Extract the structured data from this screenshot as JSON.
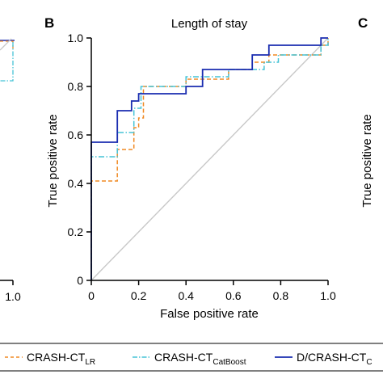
{
  "panels": {
    "left": {
      "letter": "",
      "x_ticks": [
        "1.0"
      ]
    },
    "main": {
      "letter": "B"
    },
    "right": {
      "letter": "C",
      "ylabel": "True positive rate"
    }
  },
  "legend": {
    "items": [
      {
        "base": "CRASH-CT",
        "sub": "LR",
        "color": "#f08a24",
        "dash": "dashed"
      },
      {
        "base": "CRASH-CT",
        "sub": "CatBoost",
        "color": "#45c3d6",
        "dash": "dashdot"
      },
      {
        "base": "D/CRASH-CT",
        "sub": "C",
        "color": "#1a2db0",
        "dash": "solid"
      }
    ]
  },
  "chart_data": {
    "type": "line",
    "title": "Length of stay",
    "xlabel": "False positive rate",
    "ylabel": "True positive rate",
    "xlim": [
      0,
      1.0
    ],
    "ylim": [
      0,
      1.0
    ],
    "x_ticks": [
      "0",
      "0.2",
      "0.4",
      "0.6",
      "0.8",
      "1.0"
    ],
    "y_ticks": [
      "0",
      "0.2",
      "0.4",
      "0.6",
      "0.8",
      "1.0"
    ],
    "grid": false,
    "reference_line": {
      "from": [
        0,
        0
      ],
      "to": [
        1,
        1
      ],
      "color": "#c8c8c8"
    },
    "series": [
      {
        "name": "CRASH-CT LR",
        "color": "#f08a24",
        "style": "dashed",
        "points": [
          [
            0,
            0
          ],
          [
            0,
            0.41
          ],
          [
            0.11,
            0.41
          ],
          [
            0.11,
            0.54
          ],
          [
            0.18,
            0.54
          ],
          [
            0.18,
            0.63
          ],
          [
            0.2,
            0.63
          ],
          [
            0.2,
            0.67
          ],
          [
            0.22,
            0.67
          ],
          [
            0.22,
            0.8
          ],
          [
            0.4,
            0.8
          ],
          [
            0.4,
            0.83
          ],
          [
            0.58,
            0.83
          ],
          [
            0.58,
            0.87
          ],
          [
            0.68,
            0.87
          ],
          [
            0.68,
            0.9
          ],
          [
            0.75,
            0.9
          ],
          [
            0.75,
            0.93
          ],
          [
            0.97,
            0.93
          ],
          [
            0.97,
            0.97
          ],
          [
            1.0,
            0.97
          ],
          [
            1.0,
            1.0
          ]
        ]
      },
      {
        "name": "CRASH-CT CatBoost",
        "color": "#45c3d6",
        "style": "dashdot",
        "points": [
          [
            0,
            0
          ],
          [
            0,
            0.51
          ],
          [
            0.11,
            0.51
          ],
          [
            0.11,
            0.61
          ],
          [
            0.18,
            0.61
          ],
          [
            0.18,
            0.71
          ],
          [
            0.21,
            0.71
          ],
          [
            0.21,
            0.8
          ],
          [
            0.4,
            0.8
          ],
          [
            0.4,
            0.84
          ],
          [
            0.58,
            0.84
          ],
          [
            0.58,
            0.87
          ],
          [
            0.73,
            0.87
          ],
          [
            0.73,
            0.9
          ],
          [
            0.79,
            0.9
          ],
          [
            0.79,
            0.93
          ],
          [
            0.97,
            0.93
          ],
          [
            0.97,
            0.97
          ],
          [
            1.0,
            0.97
          ],
          [
            1.0,
            1.0
          ]
        ]
      },
      {
        "name": "D/CRASH-CT C",
        "color": "#1a2db0",
        "style": "solid",
        "points": [
          [
            0,
            0
          ],
          [
            0,
            0.57
          ],
          [
            0.11,
            0.57
          ],
          [
            0.11,
            0.7
          ],
          [
            0.17,
            0.7
          ],
          [
            0.17,
            0.74
          ],
          [
            0.2,
            0.74
          ],
          [
            0.2,
            0.77
          ],
          [
            0.4,
            0.77
          ],
          [
            0.4,
            0.8
          ],
          [
            0.47,
            0.8
          ],
          [
            0.47,
            0.87
          ],
          [
            0.68,
            0.87
          ],
          [
            0.68,
            0.93
          ],
          [
            0.75,
            0.93
          ],
          [
            0.75,
            0.97
          ],
          [
            0.97,
            0.97
          ],
          [
            0.97,
            1.0
          ],
          [
            1.0,
            1.0
          ]
        ]
      }
    ]
  }
}
